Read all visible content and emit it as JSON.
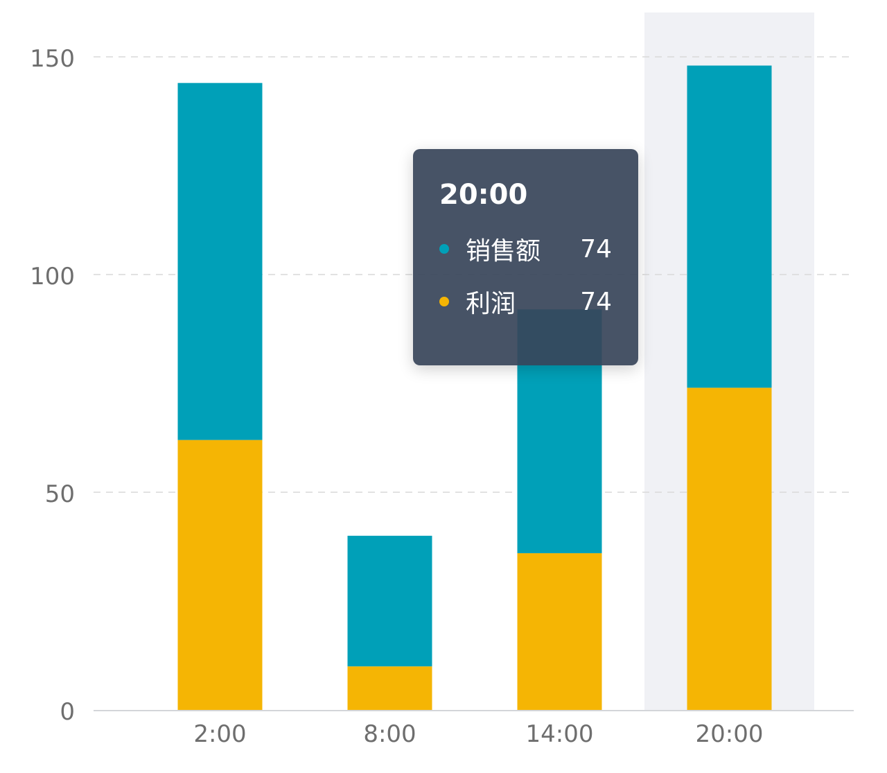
{
  "colors": {
    "sales": "#00A0B8",
    "profit": "#F5B504",
    "hover_band": "#F0F1F5",
    "grid": "#D9D9D9",
    "axis": "#D3D5D9",
    "tick_text": "#6E6E6E"
  },
  "chart_data": {
    "type": "bar",
    "stacked": true,
    "categories": [
      "2:00",
      "8:00",
      "14:00",
      "20:00"
    ],
    "series": [
      {
        "name": "利润",
        "values": [
          62,
          10,
          36,
          74
        ]
      },
      {
        "name": "销售额",
        "values": [
          82,
          30,
          56,
          74
        ]
      }
    ],
    "ylim": [
      0,
      160
    ],
    "yticks": [
      0,
      50,
      100,
      150
    ],
    "grid": true,
    "highlighted_category": "20:00"
  },
  "tooltip": {
    "title": "20:00",
    "items": [
      {
        "name": "销售额",
        "value": "74",
        "color": "#00A0B8"
      },
      {
        "name": "利润",
        "value": "74",
        "color": "#F5B504"
      }
    ]
  }
}
